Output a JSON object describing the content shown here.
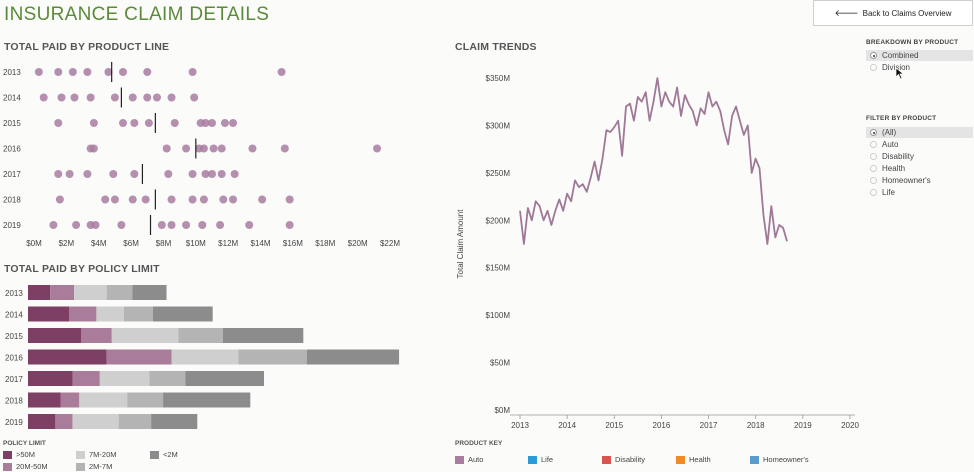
{
  "header": {
    "title": "INSURANCE CLAIM DETAILS",
    "back_button": "Back to Claims Overview"
  },
  "product_line": {
    "title": "TOTAL PAID BY PRODUCT LINE"
  },
  "policy_limit": {
    "title": "TOTAL PAID BY POLICY LIMIT",
    "legend_title": "POLICY LIMIT",
    "legend": [
      {
        "label": ">50M",
        "color": "#7d3f63"
      },
      {
        "label": "7M-20M",
        "color": "#cfcfcf"
      },
      {
        "label": "<2M",
        "color": "#8c8c8c"
      },
      {
        "label": "20M-50M",
        "color": "#a97c99"
      },
      {
        "label": "2M-7M",
        "color": "#b4b4b4"
      }
    ]
  },
  "trends": {
    "title": "CLAIM TRENDS"
  },
  "breakdown": {
    "title": "BREAKDOWN BY PRODUCT",
    "options": [
      {
        "label": "Combined",
        "selected": true
      },
      {
        "label": "Division",
        "selected": false
      }
    ]
  },
  "filter": {
    "title": "FILTER BY PRODUCT",
    "options": [
      {
        "label": "(All)",
        "selected": true
      },
      {
        "label": "Auto",
        "selected": false
      },
      {
        "label": "Disability",
        "selected": false
      },
      {
        "label": "Health",
        "selected": false
      },
      {
        "label": "Homeowner's",
        "selected": false
      },
      {
        "label": "Life",
        "selected": false
      }
    ]
  },
  "product_key": {
    "title": "PRODUCT KEY",
    "items": [
      {
        "label": "Auto",
        "color": "#a87ca0"
      },
      {
        "label": "Life",
        "color": "#2a9bd6"
      },
      {
        "label": "Disability",
        "color": "#d9534f"
      },
      {
        "label": "Health",
        "color": "#f08a24"
      },
      {
        "label": "Homeowner's",
        "color": "#5b9bc9"
      }
    ]
  },
  "chart_data": [
    {
      "type": "scatter",
      "title": "TOTAL PAID BY PRODUCT LINE",
      "categories": [
        "2013",
        "2014",
        "2015",
        "2016",
        "2017",
        "2018",
        "2019"
      ],
      "x_unit": "$M",
      "xlim": [
        0,
        22
      ],
      "x_ticks": [
        "$0M",
        "$2M",
        "$4M",
        "$6M",
        "$8M",
        "$10M",
        "$12M",
        "$14M",
        "$16M",
        "$18M",
        "$20M",
        "$22M"
      ],
      "points": [
        [
          0.3,
          1.5,
          2.4,
          3.3,
          4.6,
          5.5,
          7.0,
          9.8,
          15.3
        ],
        [
          0.6,
          1.7,
          2.5,
          3.5,
          5.0,
          6.1,
          7.0,
          7.6,
          8.5,
          9.9
        ],
        [
          1.5,
          3.7,
          5.5,
          6.2,
          7.1,
          8.7,
          10.3,
          10.6,
          11.0,
          11.8,
          12.3
        ],
        [
          3.5,
          3.7,
          8.2,
          9.4,
          10.2,
          10.5,
          11.1,
          11.6,
          13.5,
          15.5,
          21.2
        ],
        [
          1.5,
          2.2,
          3.3,
          4.9,
          6.2,
          8.3,
          9.8,
          10.6,
          11.0,
          11.6,
          12.4
        ],
        [
          1.6,
          4.4,
          5.0,
          6.1,
          6.9,
          8.5,
          9.8,
          10.5,
          11.7,
          12.3,
          14.1,
          15.8
        ],
        [
          1.2,
          2.6,
          3.5,
          3.8,
          5.4,
          7.9,
          8.5,
          9.4,
          10.4,
          11.5,
          13.3,
          15.8
        ]
      ],
      "reference_lines": [
        4.8,
        5.4,
        7.5,
        10.0,
        6.7,
        7.5,
        7.2
      ],
      "grid": false
    },
    {
      "type": "bar",
      "title": "TOTAL PAID BY POLICY LIMIT",
      "orientation": "horizontal",
      "stacked": true,
      "categories": [
        "2013",
        "2014",
        "2015",
        "2016",
        "2017",
        "2018",
        "2019"
      ],
      "series": [
        {
          "name": ">50M",
          "values": [
            1.3,
            2.4,
            3.1,
            4.6,
            2.6,
            1.9,
            1.6
          ]
        },
        {
          "name": "20M-50M",
          "values": [
            1.4,
            1.6,
            1.8,
            3.8,
            1.6,
            1.1,
            1.0
          ]
        },
        {
          "name": "7M-20M",
          "values": [
            1.9,
            1.6,
            3.9,
            3.9,
            2.9,
            2.8,
            2.7
          ]
        },
        {
          "name": "2M-7M",
          "values": [
            1.5,
            1.7,
            2.6,
            4.0,
            2.1,
            2.1,
            1.9
          ]
        },
        {
          "name": "<2M",
          "values": [
            2.0,
            3.5,
            4.7,
            5.4,
            4.6,
            5.1,
            2.7
          ]
        }
      ]
    },
    {
      "type": "line",
      "title": "CLAIM TRENDS",
      "ylabel": "Total Claim Amount",
      "xlim": [
        2013,
        2020
      ],
      "ylim": [
        0,
        350
      ],
      "y_unit": "$M",
      "x_ticks": [
        "2013",
        "2014",
        "2015",
        "2016",
        "2017",
        "2018",
        "2019",
        "2020"
      ],
      "y_ticks": [
        "$0M",
        "$50M",
        "$100M",
        "$150M",
        "$200M",
        "$250M",
        "$300M",
        "$350M"
      ],
      "grid": false,
      "series": [
        {
          "name": "Auto",
          "x_start": 2013.0,
          "x_step": 0.0833,
          "values": [
            210,
            175,
            213,
            200,
            220,
            215,
            200,
            210,
            195,
            210,
            222,
            210,
            228,
            220,
            242,
            235,
            238,
            230,
            245,
            262,
            242,
            265,
            295,
            293,
            298,
            305,
            268,
            320,
            323,
            305,
            330,
            325,
            335,
            305,
            325,
            350,
            320,
            335,
            325,
            320,
            340,
            310,
            332,
            322,
            315,
            300,
            318,
            312,
            335,
            320,
            325,
            315,
            295,
            280,
            310,
            320,
            305,
            290,
            300,
            250,
            265,
            255,
            205,
            175,
            215,
            182,
            195,
            192,
            178
          ]
        }
      ]
    }
  ]
}
